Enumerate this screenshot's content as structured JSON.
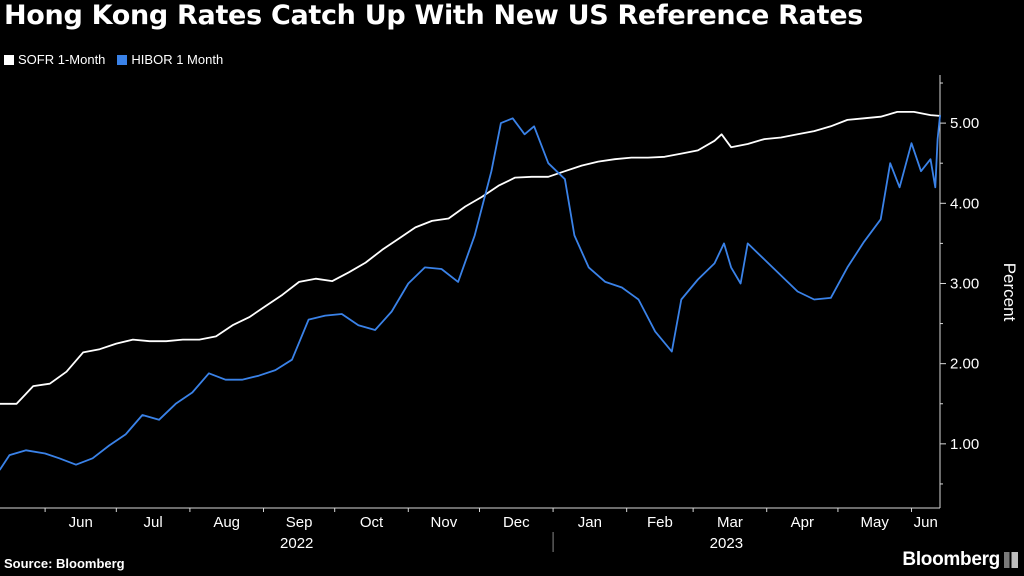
{
  "chart_data": {
    "type": "line",
    "title": "Hong Kong Rates Catch Up With New US Reference Rates",
    "ylabel": "Percent",
    "xlabel": "",
    "ylim": [
      0.2,
      5.6
    ],
    "yticks": [
      1.0,
      2.0,
      3.0,
      4.0,
      5.0
    ],
    "ytick_labels": [
      "1.00",
      "2.00",
      "3.00",
      "4.00",
      "5.00"
    ],
    "x_range": [
      "2022-05-13",
      "2023-06-13"
    ],
    "month_ticks": [
      {
        "date": "2022-06-01",
        "label": "Jun"
      },
      {
        "date": "2022-07-01",
        "label": "Jul"
      },
      {
        "date": "2022-08-01",
        "label": "Aug"
      },
      {
        "date": "2022-09-01",
        "label": "Sep"
      },
      {
        "date": "2022-10-01",
        "label": "Oct"
      },
      {
        "date": "2022-11-01",
        "label": "Nov"
      },
      {
        "date": "2022-12-01",
        "label": "Dec"
      },
      {
        "date": "2023-01-01",
        "label": "Jan"
      },
      {
        "date": "2023-02-01",
        "label": "Feb"
      },
      {
        "date": "2023-03-01",
        "label": "Mar"
      },
      {
        "date": "2023-04-01",
        "label": "Apr"
      },
      {
        "date": "2023-05-01",
        "label": "May"
      },
      {
        "date": "2023-06-01",
        "label": "Jun"
      }
    ],
    "year_labels": [
      {
        "label": "2022",
        "date": "2022-09-15"
      },
      {
        "label": "2023",
        "date": "2023-03-15"
      }
    ],
    "year_divider_date": "2023-01-01",
    "series": [
      {
        "name": "SOFR 1-Month",
        "color": "#ffffff",
        "points": [
          [
            "2022-05-13",
            1.5
          ],
          [
            "2022-05-20",
            1.5
          ],
          [
            "2022-05-27",
            1.72
          ],
          [
            "2022-06-03",
            1.75
          ],
          [
            "2022-06-10",
            1.9
          ],
          [
            "2022-06-17",
            2.14
          ],
          [
            "2022-06-24",
            2.18
          ],
          [
            "2022-07-01",
            2.25
          ],
          [
            "2022-07-08",
            2.3
          ],
          [
            "2022-07-15",
            2.28
          ],
          [
            "2022-07-22",
            2.28
          ],
          [
            "2022-07-29",
            2.3
          ],
          [
            "2022-08-05",
            2.3
          ],
          [
            "2022-08-12",
            2.34
          ],
          [
            "2022-08-19",
            2.48
          ],
          [
            "2022-08-26",
            2.58
          ],
          [
            "2022-09-02",
            2.72
          ],
          [
            "2022-09-09",
            2.86
          ],
          [
            "2022-09-16",
            3.02
          ],
          [
            "2022-09-23",
            3.06
          ],
          [
            "2022-09-30",
            3.03
          ],
          [
            "2022-10-07",
            3.14
          ],
          [
            "2022-10-14",
            3.26
          ],
          [
            "2022-10-21",
            3.42
          ],
          [
            "2022-10-28",
            3.56
          ],
          [
            "2022-11-04",
            3.7
          ],
          [
            "2022-11-11",
            3.78
          ],
          [
            "2022-11-18",
            3.81
          ],
          [
            "2022-11-25",
            3.96
          ],
          [
            "2022-12-02",
            4.08
          ],
          [
            "2022-12-09",
            4.22
          ],
          [
            "2022-12-16",
            4.32
          ],
          [
            "2022-12-23",
            4.33
          ],
          [
            "2022-12-30",
            4.33
          ],
          [
            "2023-01-06",
            4.4
          ],
          [
            "2023-01-13",
            4.47
          ],
          [
            "2023-01-20",
            4.52
          ],
          [
            "2023-01-27",
            4.55
          ],
          [
            "2023-02-03",
            4.57
          ],
          [
            "2023-02-10",
            4.57
          ],
          [
            "2023-02-17",
            4.58
          ],
          [
            "2023-02-24",
            4.62
          ],
          [
            "2023-03-03",
            4.66
          ],
          [
            "2023-03-10",
            4.78
          ],
          [
            "2023-03-13",
            4.86
          ],
          [
            "2023-03-17",
            4.7
          ],
          [
            "2023-03-24",
            4.74
          ],
          [
            "2023-03-31",
            4.8
          ],
          [
            "2023-04-07",
            4.82
          ],
          [
            "2023-04-14",
            4.86
          ],
          [
            "2023-04-21",
            4.9
          ],
          [
            "2023-04-28",
            4.96
          ],
          [
            "2023-05-05",
            5.04
          ],
          [
            "2023-05-12",
            5.06
          ],
          [
            "2023-05-19",
            5.08
          ],
          [
            "2023-05-26",
            5.14
          ],
          [
            "2023-06-02",
            5.14
          ],
          [
            "2023-06-09",
            5.1
          ],
          [
            "2023-06-13",
            5.09
          ]
        ]
      },
      {
        "name": "HIBOR 1 Month",
        "color": "#3a82e8",
        "points": [
          [
            "2022-05-13",
            0.68
          ],
          [
            "2022-05-17",
            0.86
          ],
          [
            "2022-05-24",
            0.92
          ],
          [
            "2022-06-01",
            0.88
          ],
          [
            "2022-06-07",
            0.82
          ],
          [
            "2022-06-14",
            0.74
          ],
          [
            "2022-06-21",
            0.82
          ],
          [
            "2022-06-28",
            0.98
          ],
          [
            "2022-07-05",
            1.12
          ],
          [
            "2022-07-12",
            1.36
          ],
          [
            "2022-07-19",
            1.3
          ],
          [
            "2022-07-26",
            1.5
          ],
          [
            "2022-08-02",
            1.64
          ],
          [
            "2022-08-09",
            1.88
          ],
          [
            "2022-08-16",
            1.8
          ],
          [
            "2022-08-23",
            1.8
          ],
          [
            "2022-08-30",
            1.85
          ],
          [
            "2022-09-06",
            1.92
          ],
          [
            "2022-09-13",
            2.05
          ],
          [
            "2022-09-20",
            2.55
          ],
          [
            "2022-09-27",
            2.6
          ],
          [
            "2022-10-04",
            2.62
          ],
          [
            "2022-10-11",
            2.48
          ],
          [
            "2022-10-18",
            2.42
          ],
          [
            "2022-10-25",
            2.65
          ],
          [
            "2022-11-01",
            3.0
          ],
          [
            "2022-11-08",
            3.2
          ],
          [
            "2022-11-15",
            3.18
          ],
          [
            "2022-11-22",
            3.02
          ],
          [
            "2022-11-29",
            3.6
          ],
          [
            "2022-12-06",
            4.4
          ],
          [
            "2022-12-10",
            5.0
          ],
          [
            "2022-12-15",
            5.06
          ],
          [
            "2022-12-20",
            4.86
          ],
          [
            "2022-12-24",
            4.96
          ],
          [
            "2022-12-30",
            4.5
          ],
          [
            "2023-01-06",
            4.3
          ],
          [
            "2023-01-10",
            3.6
          ],
          [
            "2023-01-16",
            3.2
          ],
          [
            "2023-01-23",
            3.02
          ],
          [
            "2023-01-30",
            2.95
          ],
          [
            "2023-02-06",
            2.8
          ],
          [
            "2023-02-13",
            2.4
          ],
          [
            "2023-02-20",
            2.15
          ],
          [
            "2023-02-24",
            2.8
          ],
          [
            "2023-03-03",
            3.05
          ],
          [
            "2023-03-10",
            3.25
          ],
          [
            "2023-03-14",
            3.5
          ],
          [
            "2023-03-17",
            3.2
          ],
          [
            "2023-03-21",
            3.0
          ],
          [
            "2023-03-24",
            3.5
          ],
          [
            "2023-03-31",
            3.3
          ],
          [
            "2023-04-07",
            3.1
          ],
          [
            "2023-04-14",
            2.9
          ],
          [
            "2023-04-21",
            2.8
          ],
          [
            "2023-04-28",
            2.82
          ],
          [
            "2023-05-05",
            3.2
          ],
          [
            "2023-05-12",
            3.52
          ],
          [
            "2023-05-19",
            3.8
          ],
          [
            "2023-05-23",
            4.5
          ],
          [
            "2023-05-27",
            4.2
          ],
          [
            "2023-06-01",
            4.75
          ],
          [
            "2023-06-05",
            4.4
          ],
          [
            "2023-06-09",
            4.55
          ],
          [
            "2023-06-11",
            4.2
          ],
          [
            "2023-06-12",
            4.8
          ],
          [
            "2023-06-13",
            5.09
          ]
        ]
      }
    ]
  },
  "footer": {
    "source": "Source: Bloomberg",
    "brand": "Bloomberg"
  }
}
